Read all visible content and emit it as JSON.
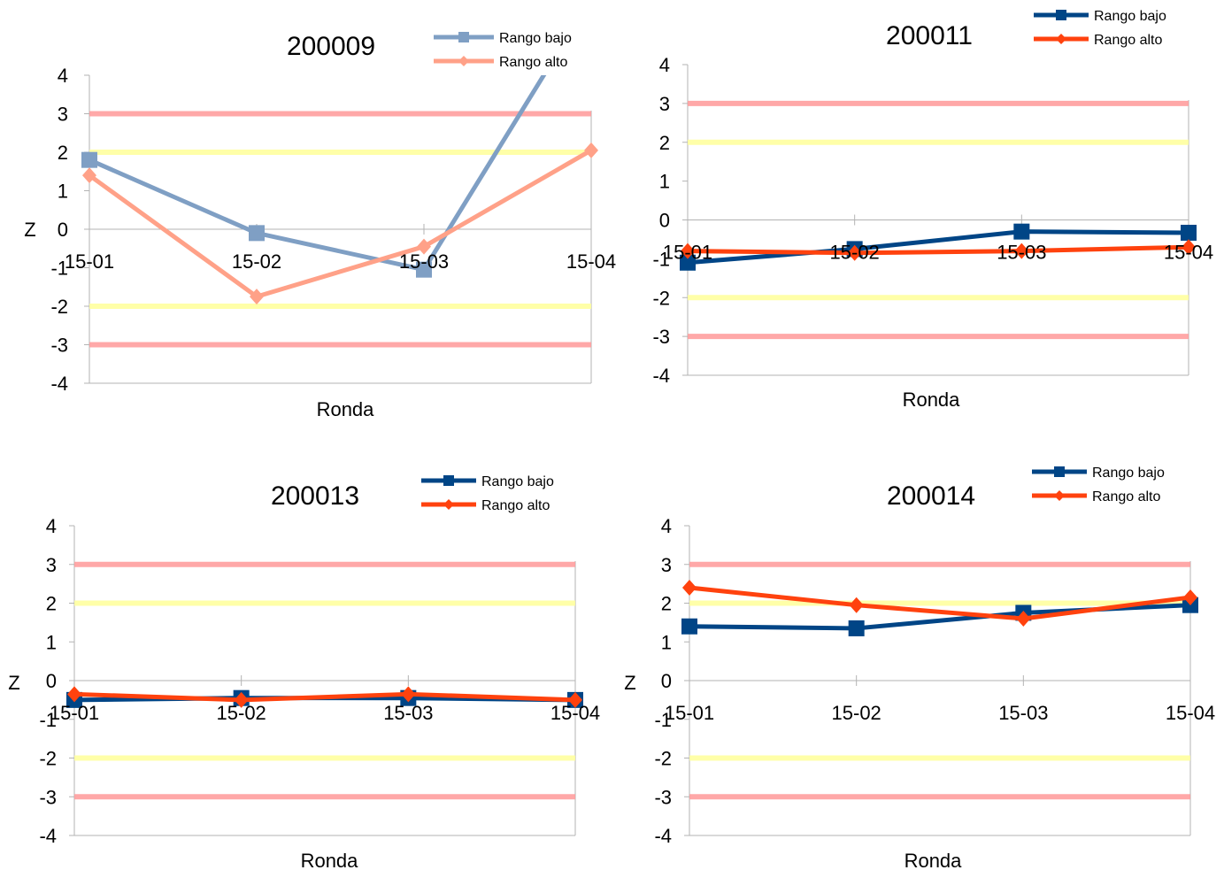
{
  "chart_data": [
    {
      "type": "line",
      "title": "200009",
      "xlabel": "Ronda",
      "ylabel": "Z",
      "categories": [
        "15-01",
        "15-02",
        "15-03",
        "15-04"
      ],
      "ylim": [
        -4,
        4
      ],
      "yticks": [
        "4",
        "3",
        "2",
        "1",
        "0",
        "-1",
        "-2",
        "-3",
        "-4"
      ],
      "reference_lines": [
        {
          "y": 3,
          "color": "#ff9999"
        },
        {
          "y": 2,
          "color": "#ffff99"
        },
        {
          "y": -2,
          "color": "#ffff99"
        },
        {
          "y": -3,
          "color": "#ff9999"
        }
      ],
      "series": [
        {
          "name": "Rango bajo",
          "marker": "square",
          "color": "#7f9fc4",
          "values": [
            1.8,
            -0.1,
            -1.05,
            6.0
          ]
        },
        {
          "name": "Rango alto",
          "marker": "diamond",
          "color": "#ffa188",
          "values": [
            1.4,
            -1.75,
            -0.45,
            2.05
          ]
        }
      ],
      "legend": "top-right"
    },
    {
      "type": "line",
      "title": "200011",
      "xlabel": "Ronda",
      "ylabel": "",
      "categories": [
        "15-01",
        "15-02",
        "15-03",
        "15-04"
      ],
      "ylim": [
        -4,
        4
      ],
      "yticks": [
        "4",
        "3",
        "2",
        "1",
        "0",
        "-1",
        "-2",
        "-3",
        "-4"
      ],
      "reference_lines": [
        {
          "y": 3,
          "color": "#ff9999"
        },
        {
          "y": 2,
          "color": "#ffff99"
        },
        {
          "y": -2,
          "color": "#ffff99"
        },
        {
          "y": -3,
          "color": "#ff9999"
        }
      ],
      "series": [
        {
          "name": "Rango bajo",
          "marker": "square",
          "color": "#004586",
          "values": [
            -1.1,
            -0.75,
            -0.3,
            -0.33
          ]
        },
        {
          "name": "Rango alto",
          "marker": "diamond",
          "color": "#ff420e",
          "values": [
            -0.8,
            -0.85,
            -0.8,
            -0.7
          ]
        }
      ],
      "legend": "top-right"
    },
    {
      "type": "line",
      "title": "200013",
      "xlabel": "Ronda",
      "ylabel": "Z",
      "categories": [
        "15-01",
        "15-02",
        "15-03",
        "15-04"
      ],
      "ylim": [
        -4,
        4
      ],
      "yticks": [
        "4",
        "3",
        "2",
        "1",
        "0",
        "-1",
        "-2",
        "-3",
        "-4"
      ],
      "reference_lines": [
        {
          "y": 3,
          "color": "#ff9999"
        },
        {
          "y": 2,
          "color": "#ffff99"
        },
        {
          "y": -2,
          "color": "#ffff99"
        },
        {
          "y": -3,
          "color": "#ff9999"
        }
      ],
      "series": [
        {
          "name": "Rango bajo",
          "marker": "square",
          "color": "#004586",
          "values": [
            -0.5,
            -0.45,
            -0.45,
            -0.5
          ]
        },
        {
          "name": "Rango alto",
          "marker": "diamond",
          "color": "#ff420e",
          "values": [
            -0.35,
            -0.5,
            -0.35,
            -0.5
          ]
        }
      ],
      "legend": "top-right"
    },
    {
      "type": "line",
      "title": "200014",
      "xlabel": "Ronda",
      "ylabel": "Z",
      "categories": [
        "15-01",
        "15-02",
        "15-03",
        "15-04"
      ],
      "ylim": [
        -4,
        4
      ],
      "yticks": [
        "4",
        "3",
        "2",
        "1",
        "0",
        "-1",
        "-2",
        "-3",
        "-4"
      ],
      "reference_lines": [
        {
          "y": 3,
          "color": "#ff9999"
        },
        {
          "y": 2,
          "color": "#ffff99"
        },
        {
          "y": -2,
          "color": "#ffff99"
        },
        {
          "y": -3,
          "color": "#ff9999"
        }
      ],
      "series": [
        {
          "name": "Rango bajo",
          "marker": "square",
          "color": "#004586",
          "values": [
            1.4,
            1.35,
            1.75,
            1.95
          ]
        },
        {
          "name": "Rango alto",
          "marker": "diamond",
          "color": "#ff420e",
          "values": [
            2.4,
            1.95,
            1.6,
            2.15
          ]
        }
      ],
      "legend": "top-right"
    }
  ]
}
